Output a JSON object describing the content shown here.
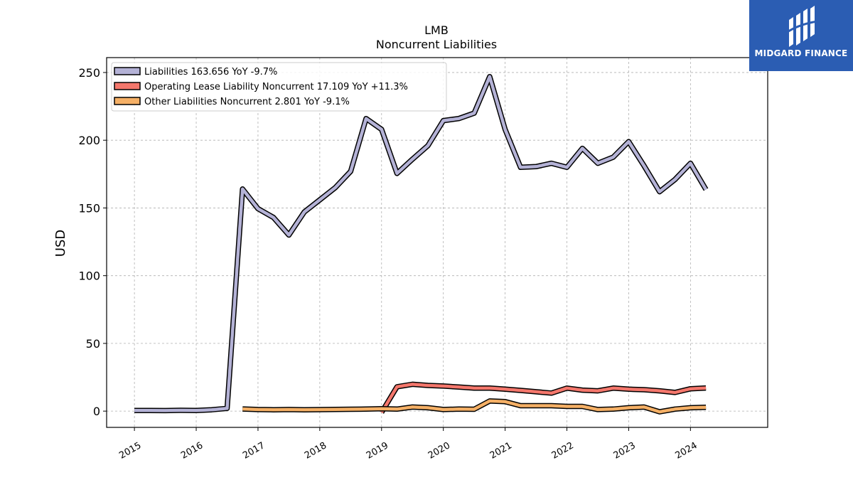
{
  "brand": {
    "name": "MIDGARD FINANCE",
    "background_color": "#2b5db3",
    "text_color": "#ffffff"
  },
  "chart_data": {
    "type": "line",
    "title": "LMB",
    "subtitle": "Noncurrent  Liabilities",
    "xlabel": "",
    "ylabel": "USD",
    "xlim": [
      2014.55,
      2025.25
    ],
    "ylim": [
      -12,
      261
    ],
    "yticks": [
      0,
      50,
      100,
      150,
      200,
      250
    ],
    "xticks": [
      "2015",
      "2016",
      "2017",
      "2018",
      "2019",
      "2020",
      "2021",
      "2022",
      "2023",
      "2024"
    ],
    "grid": true,
    "legend_position": "top-left",
    "series": [
      {
        "name": "Liabilities  163.656 YoY -9.7%",
        "color": "#b4b2d6",
        "points": [
          [
            2015.0,
            0.5
          ],
          [
            2015.25,
            0.5
          ],
          [
            2015.5,
            0.4
          ],
          [
            2015.75,
            0.6
          ],
          [
            2016.0,
            0.5
          ],
          [
            2016.25,
            1.0
          ],
          [
            2016.5,
            2.0
          ],
          [
            2016.75,
            164.0
          ],
          [
            2017.0,
            149.5
          ],
          [
            2017.25,
            143.0
          ],
          [
            2017.5,
            130.0
          ],
          [
            2017.75,
            147.0
          ],
          [
            2018.0,
            156.0
          ],
          [
            2018.25,
            165.0
          ],
          [
            2018.5,
            177.0
          ],
          [
            2018.75,
            216.0
          ],
          [
            2019.0,
            208.0
          ],
          [
            2019.25,
            175.5
          ],
          [
            2019.5,
            186.0
          ],
          [
            2019.75,
            196.0
          ],
          [
            2020.0,
            214.5
          ],
          [
            2020.25,
            216.0
          ],
          [
            2020.5,
            220.0
          ],
          [
            2020.75,
            247.0
          ],
          [
            2021.0,
            208.0
          ],
          [
            2021.25,
            180.0
          ],
          [
            2021.5,
            180.5
          ],
          [
            2021.75,
            183.0
          ],
          [
            2022.0,
            180.0
          ],
          [
            2022.25,
            194.0
          ],
          [
            2022.5,
            183.0
          ],
          [
            2022.75,
            187.5
          ],
          [
            2023.0,
            199.0
          ],
          [
            2023.25,
            181.0
          ],
          [
            2023.5,
            162.0
          ],
          [
            2023.75,
            171.0
          ],
          [
            2024.0,
            183.0
          ],
          [
            2024.25,
            163.6
          ]
        ]
      },
      {
        "name": "Operating Lease Liability Noncurrent  17.109 YoY +11.3%",
        "color": "#f4776c",
        "points": [
          [
            2019.0,
            -1.0
          ],
          [
            2019.25,
            18.0
          ],
          [
            2019.5,
            19.8
          ],
          [
            2019.75,
            19.0
          ],
          [
            2020.0,
            18.5
          ],
          [
            2020.25,
            17.8
          ],
          [
            2020.5,
            17.0
          ],
          [
            2020.75,
            17.0
          ],
          [
            2021.0,
            16.2
          ],
          [
            2021.25,
            15.3
          ],
          [
            2021.5,
            14.3
          ],
          [
            2021.75,
            13.3
          ],
          [
            2022.0,
            17.0
          ],
          [
            2022.25,
            15.5
          ],
          [
            2022.5,
            15.0
          ],
          [
            2022.75,
            17.0
          ],
          [
            2023.0,
            16.2
          ],
          [
            2023.25,
            15.8
          ],
          [
            2023.5,
            15.0
          ],
          [
            2023.75,
            13.8
          ],
          [
            2024.0,
            16.5
          ],
          [
            2024.25,
            17.1
          ]
        ]
      },
      {
        "name": "Other Liabilities Noncurrent  2.801 YoY -9.1%",
        "color": "#f5b066",
        "points": [
          [
            2016.75,
            1.6
          ],
          [
            2017.0,
            1.2
          ],
          [
            2017.25,
            1.0
          ],
          [
            2017.5,
            1.2
          ],
          [
            2017.75,
            1.0
          ],
          [
            2018.0,
            1.1
          ],
          [
            2018.25,
            1.3
          ],
          [
            2018.5,
            1.4
          ],
          [
            2018.75,
            1.5
          ],
          [
            2019.0,
            1.8
          ],
          [
            2019.25,
            1.5
          ],
          [
            2019.5,
            3.0
          ],
          [
            2019.75,
            2.5
          ],
          [
            2020.0,
            1.2
          ],
          [
            2020.25,
            1.5
          ],
          [
            2020.5,
            1.4
          ],
          [
            2020.75,
            7.5
          ],
          [
            2021.0,
            7.0
          ],
          [
            2021.25,
            4.0
          ],
          [
            2021.5,
            4.0
          ],
          [
            2021.75,
            4.0
          ],
          [
            2022.0,
            3.5
          ],
          [
            2022.25,
            3.5
          ],
          [
            2022.5,
            1.2
          ],
          [
            2022.75,
            1.5
          ],
          [
            2023.0,
            2.5
          ],
          [
            2023.25,
            3.0
          ],
          [
            2023.5,
            -0.5
          ],
          [
            2023.75,
            1.5
          ],
          [
            2024.0,
            2.5
          ],
          [
            2024.25,
            2.8
          ]
        ]
      }
    ]
  }
}
